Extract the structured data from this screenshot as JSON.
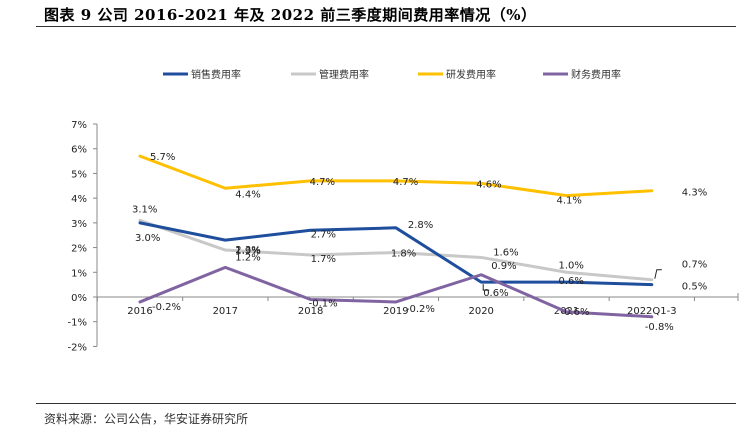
{
  "header": {
    "title": "图表 9 公司 2016-2021 年及 2022 前三季度期间费用率情况（%）"
  },
  "footer": {
    "source": "资料来源：公司公告，华安证券研究所"
  },
  "chart_data": {
    "type": "line",
    "title": "公司 2016-2021 年及 2022 前三季度期间费用率情况（%）",
    "xlabel": "",
    "ylabel": "",
    "categories": [
      "2016",
      "2017",
      "2018",
      "2019",
      "2020",
      "2021",
      "2022Q1-3"
    ],
    "y_ticks": [
      "7%",
      "6%",
      "5%",
      "4%",
      "3%",
      "2%",
      "1%",
      "0%",
      "-1%",
      "-2%"
    ],
    "ylim": [
      -2,
      7
    ],
    "grid": false,
    "legend_position": "top",
    "series": [
      {
        "name": "销售费用率",
        "color": "#1F4E9C",
        "values": [
          3.0,
          2.3,
          2.7,
          2.8,
          0.6,
          0.6,
          0.5
        ],
        "labels": [
          "3.0%",
          "2.3%",
          "2.7%",
          "2.8%",
          "0.6%",
          "0.6%",
          "0.5%"
        ]
      },
      {
        "name": "管理费用率",
        "color": "#C8C8C8",
        "values": [
          3.1,
          1.9,
          1.7,
          1.8,
          1.6,
          1.0,
          0.7
        ],
        "labels": [
          "3.1%",
          "1.9%",
          "1.7%",
          "1.8%",
          "1.6%",
          "1.0%",
          "0.7%"
        ]
      },
      {
        "name": "研发费用率",
        "color": "#FFC000",
        "values": [
          5.7,
          4.4,
          4.7,
          4.7,
          4.6,
          4.1,
          4.3
        ],
        "labels": [
          "5.7%",
          "4.4%",
          "4.7%",
          "4.7%",
          "4.6%",
          "4.1%",
          "4.3%"
        ]
      },
      {
        "name": "财务费用率",
        "color": "#8064A2",
        "values": [
          -0.2,
          1.2,
          -0.1,
          -0.2,
          0.9,
          -0.6,
          -0.8
        ],
        "labels": [
          "-0.2%",
          "1.2%",
          "-0.1%",
          "-0.2%",
          "0.9%",
          "-0.6%",
          "-0.8%"
        ]
      }
    ]
  }
}
